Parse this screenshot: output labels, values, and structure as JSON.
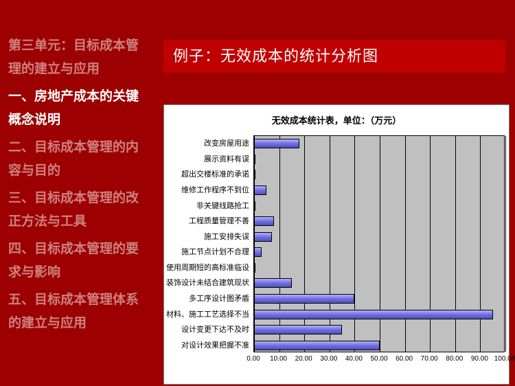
{
  "sidebar": {
    "unit_title": "第三单元：目标成本管理的建立与应用",
    "items": [
      {
        "label": "一、房地产成本的关键概念说明",
        "active": true
      },
      {
        "label": "二、目标成本管理的内容与目的",
        "active": false
      },
      {
        "label": "三、目标成本管理的改正方法与工具",
        "active": false
      },
      {
        "label": "四、目标成本管理的要求与影响",
        "active": false
      },
      {
        "label": "五、目标成本管理体系的建立与应用",
        "active": false
      }
    ]
  },
  "header": {
    "title": "例子：无效成本的统计分析图"
  },
  "chart": {
    "type": "bar-horizontal",
    "title": "无效成本统计表，单位：（万元）",
    "title_fontsize": 13,
    "background_color": "#ffffff",
    "plot_bg_color": "#c0c0c0",
    "grid_color": "#000000",
    "bar_fill": "#7070e0",
    "bar_border": "#000000",
    "label_fontsize": 11,
    "xlim": [
      0,
      100
    ],
    "xtick_step": 10,
    "xticks": [
      "0.00",
      "10.00",
      "20.00",
      "30.00",
      "40.00",
      "50.00",
      "60.00",
      "70.00",
      "80.00",
      "90.00",
      "100.00"
    ],
    "categories": [
      "改变房屋用途",
      "展示资料有误",
      "超出交楼标准的承诺",
      "维修工作程序不到位",
      "非关键线路抢工",
      "工程质量管理不善",
      "施工安排失误",
      "施工节点计划不合理",
      "使用周期短的高标准临设",
      "装饰设计未结合建筑现状",
      "多工序设计图矛盾",
      "材料、施工工艺选择不当",
      "设计变更下达不及时",
      "对设计效果把握不准"
    ],
    "values": [
      18,
      0.5,
      0.5,
      5,
      0.5,
      8,
      7,
      3,
      0.5,
      15,
      40,
      95,
      35,
      50
    ]
  }
}
